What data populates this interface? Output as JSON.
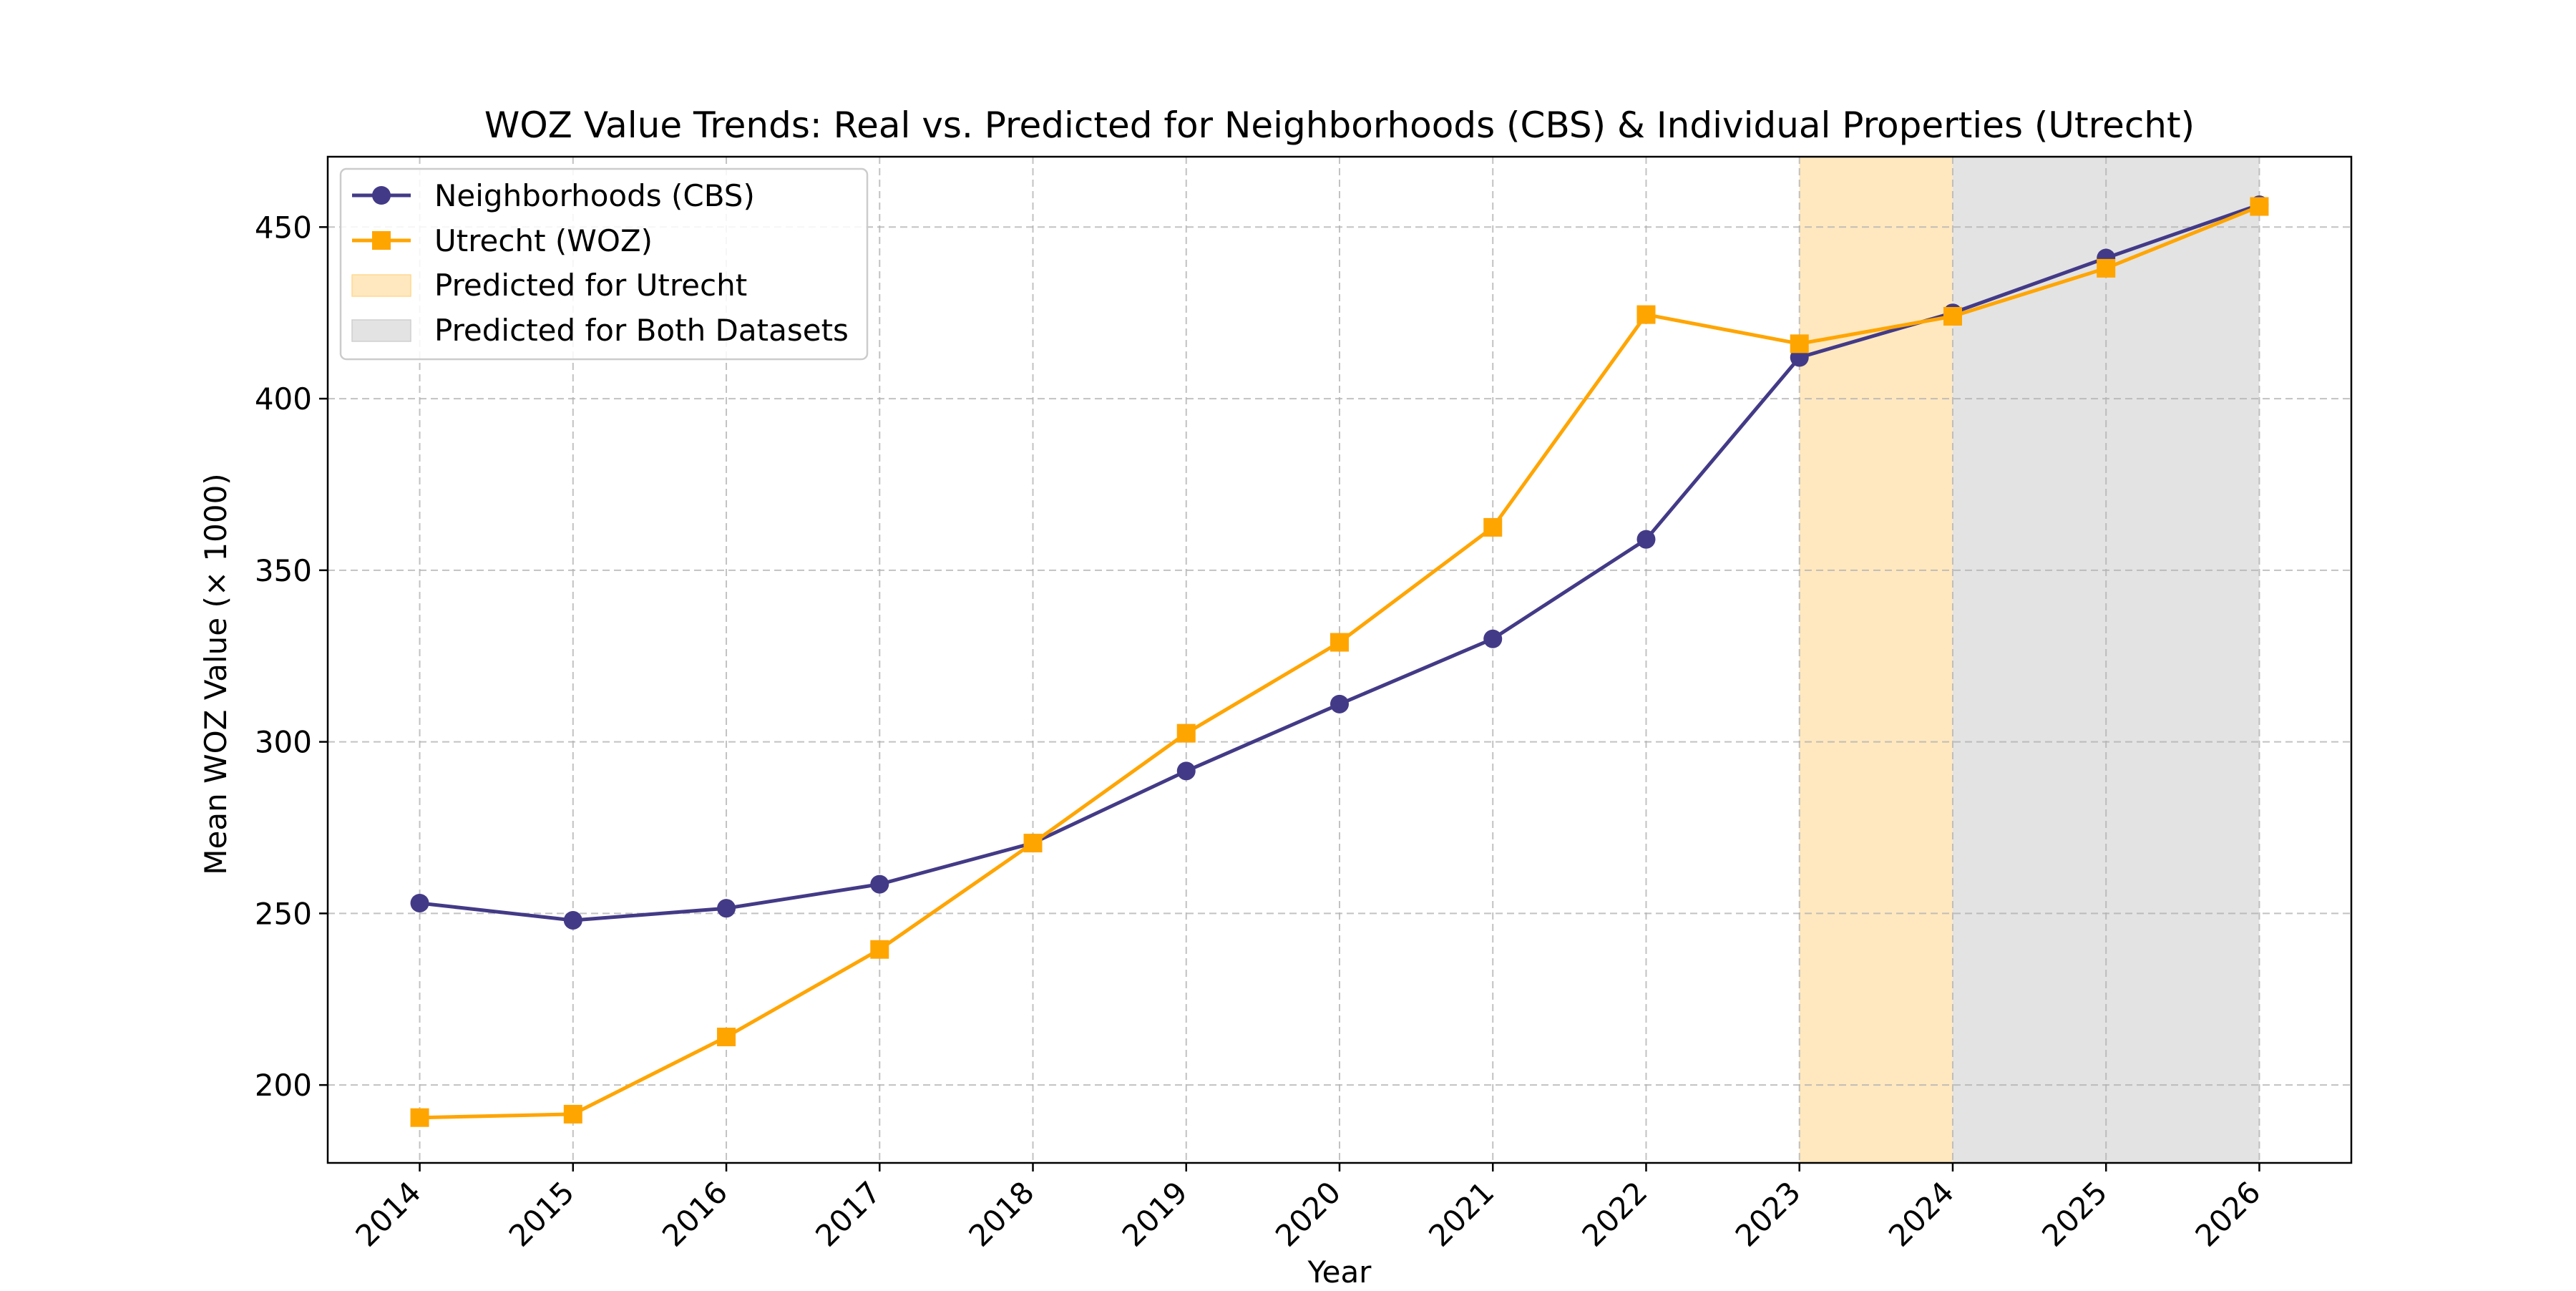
{
  "chart_data": {
    "type": "line",
    "title": "WOZ Value Trends: Real vs. Predicted for Neighborhoods (CBS) & Individual Properties (Utrecht)",
    "xlabel": "Year",
    "ylabel": "Mean WOZ Value (× 1000)",
    "x": [
      2014,
      2015,
      2016,
      2017,
      2018,
      2019,
      2020,
      2021,
      2022,
      2023,
      2024,
      2025,
      2026
    ],
    "xlim": [
      2013.4,
      2026.6
    ],
    "ylim": [
      177.3,
      470.5
    ],
    "yticks": [
      200,
      250,
      300,
      350,
      400,
      450
    ],
    "grid": true,
    "legend_position": "top-left",
    "series": [
      {
        "name": "Neighborhoods (CBS)",
        "color": "#433a87",
        "marker": "circle",
        "values": [
          253,
          248,
          251.5,
          258.5,
          270.5,
          291.5,
          311,
          330,
          359,
          412,
          425,
          441,
          456.5
        ]
      },
      {
        "name": "Utrecht (WOZ)",
        "color": "#ffa500",
        "marker": "square",
        "values": [
          190.5,
          191.5,
          214,
          239.5,
          270.5,
          302.5,
          329,
          362.5,
          424.5,
          416,
          424,
          438,
          456
        ]
      }
    ],
    "shaded_regions": [
      {
        "label": "Predicted for Utrecht",
        "from": 2023,
        "to": 2024,
        "color": "#ffe8bf"
      },
      {
        "label": "Predicted for Both Datasets",
        "from": 2024,
        "to": 2026,
        "color": "#e3e3e3"
      }
    ]
  }
}
